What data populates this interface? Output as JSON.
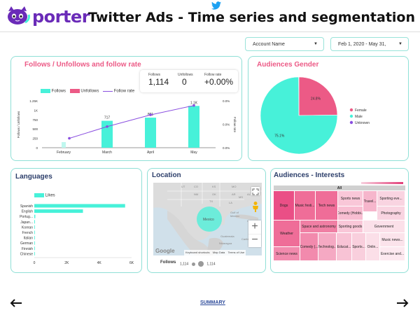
{
  "header": {
    "brand": "porter",
    "title": "Twitter Ads - Time series and segmentation"
  },
  "filters": {
    "account": "Account Name",
    "date_range": "Feb 1, 2020 - May 31,"
  },
  "follows_card": {
    "title": "Follows / Unfollows and follow rate",
    "kpis": [
      {
        "label": "Follows",
        "value": "1,114"
      },
      {
        "label": "Unfollows",
        "value": "0"
      },
      {
        "label": "Follow rate",
        "value": "+0.00%"
      }
    ],
    "legend": [
      "Follows",
      "Unfollows",
      "Follow rate"
    ],
    "ylabel_left": "Follows / Unfollows",
    "ylabel_right": "Follow rate",
    "left_ticks": [
      "1.25K",
      "1K",
      "750",
      "500",
      "250",
      "0"
    ],
    "right_ticks": [
      "0.0%",
      "0.0%",
      "0.0%"
    ]
  },
  "chart_data": [
    {
      "type": "bar",
      "title": "Follows / Unfollows and follow rate",
      "categories": [
        "February",
        "March",
        "April",
        "May"
      ],
      "series": [
        {
          "name": "Follows",
          "values": [
            0,
            717,
            801,
            1114
          ]
        },
        {
          "name": "Unfollows",
          "values": [
            0,
            0,
            0,
            0
          ]
        }
      ],
      "line": {
        "name": "Follow rate",
        "values": [
          0.2,
          0.45,
          0.7,
          0.9
        ]
      },
      "data_labels": [
        "",
        "717",
        "801",
        "1.1K"
      ],
      "ylim": [
        0,
        1250
      ],
      "colors": {
        "Follows": "#47f1d9",
        "Unfollows": "#ec5a86",
        "Follow rate": "#8a4fe0"
      }
    },
    {
      "type": "pie",
      "title": "Audiences Gender",
      "labels": [
        "Female",
        "Male",
        "Unknown"
      ],
      "values": [
        24.8,
        75.1,
        0.1
      ],
      "slice_labels": [
        "24.8%",
        "75.1%",
        ""
      ],
      "colors": [
        "#ec5a86",
        "#47f1d9",
        "#8a4fe0"
      ]
    },
    {
      "type": "bar",
      "title": "Languages",
      "orientation": "horizontal",
      "series_name": "Likes",
      "categories": [
        "Spanish",
        "English",
        "Portug...",
        "Japan...",
        "Korean",
        "French",
        "Italian",
        "German",
        "Finnish",
        "Chinese"
      ],
      "values": [
        5600,
        3000,
        60,
        40,
        30,
        25,
        20,
        15,
        10,
        10
      ],
      "xticks": [
        "0",
        "2K",
        "4K",
        "6K"
      ],
      "xlim": [
        0,
        6000
      ]
    }
  ],
  "languages": {
    "title": "Languages",
    "legend": "Likes"
  },
  "location": {
    "title": "Location",
    "place": "Mexico",
    "legend_label": "Follows",
    "legend_min": "1,114",
    "legend_max": "1,114",
    "footer": [
      "Keyboard shortcuts",
      "Map Data",
      "Terms of Use"
    ],
    "google": "Google",
    "map_labels": [
      "UT",
      "CO",
      "KS",
      "MO",
      "NM",
      "OK",
      "AR",
      "TX",
      "LA",
      "MS",
      "AL",
      "Gulf of Mexico",
      "Cuba",
      "Guatemala",
      "Nicaragua",
      "Caribbean"
    ]
  },
  "interests": {
    "title": "Audiences - Interests",
    "root": "All",
    "cells": [
      "Dogs",
      "Music festi...",
      "Tech news",
      "Sports news",
      "Travel...",
      "Sporting eve...",
      "Comedy (Hobbi...",
      "Photography",
      "Weather",
      "Space and astronomy",
      "Sporting goods",
      "Government",
      "Comedy (...",
      "Technolog...",
      "Educat...",
      "Sports...",
      "Onlin...",
      "Music news...",
      "Science news",
      "Exercise and..."
    ]
  },
  "footer": {
    "summary": "SUMMARY"
  }
}
